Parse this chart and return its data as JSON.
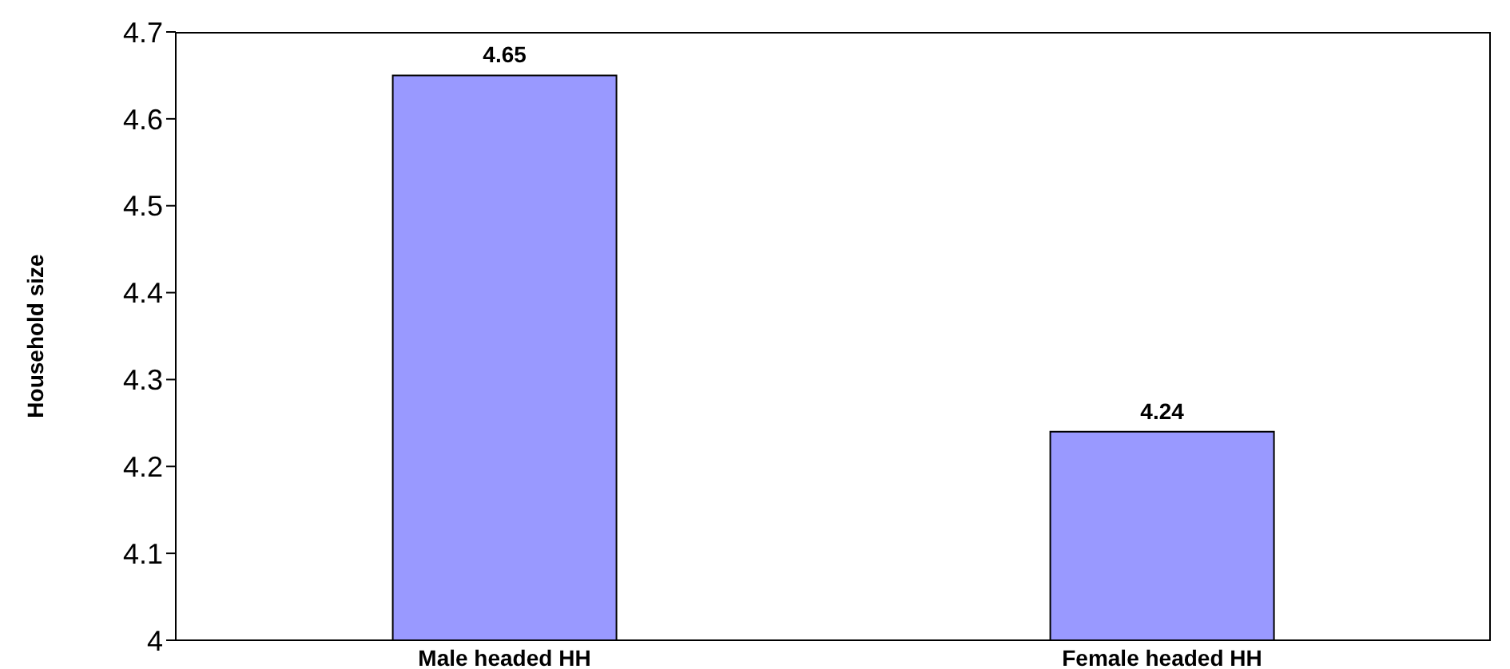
{
  "chart_data": {
    "type": "bar",
    "ylabel": "Household size",
    "categories": [
      "Male headed HH",
      "Female headed HH"
    ],
    "values": [
      4.65,
      4.24
    ],
    "color": "#9999ff",
    "ylim": [
      4,
      4.7
    ],
    "yticks": [
      4,
      4.1,
      4.2,
      4.3,
      4.4,
      4.5,
      4.6,
      4.7
    ],
    "data_labels": true
  }
}
